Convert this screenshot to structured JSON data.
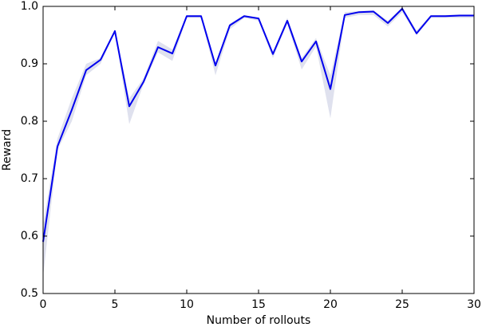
{
  "chart_data": {
    "type": "line",
    "xlabel": "Number of rollouts",
    "ylabel": "Reward",
    "x": [
      0,
      1,
      2,
      3,
      4,
      5,
      6,
      7,
      8,
      9,
      10,
      11,
      12,
      13,
      14,
      15,
      16,
      17,
      18,
      19,
      20,
      21,
      22,
      23,
      24,
      25,
      26,
      27,
      28,
      29,
      30
    ],
    "series": [
      {
        "color": "#0000ee",
        "values": [
          0.59,
          0.756,
          0.82,
          0.889,
          0.907,
          0.957,
          0.826,
          0.869,
          0.929,
          0.918,
          0.983,
          0.983,
          0.897,
          0.967,
          0.983,
          0.979,
          0.917,
          0.975,
          0.904,
          0.939,
          0.856,
          0.985,
          0.99,
          0.991,
          0.971,
          0.996,
          0.953,
          0.983,
          0.983,
          0.984,
          0.984
        ]
      }
    ],
    "band": {
      "color": "#dfe1ee",
      "lower": [
        0.53,
        0.75,
        0.8,
        0.88,
        0.9,
        0.955,
        0.795,
        0.865,
        0.92,
        0.905,
        0.98,
        0.98,
        0.88,
        0.96,
        0.98,
        0.975,
        0.91,
        0.97,
        0.89,
        0.93,
        0.805,
        0.98,
        0.985,
        0.985,
        0.965,
        0.99,
        0.95,
        0.98,
        0.98,
        0.98,
        0.98
      ],
      "upper": [
        0.62,
        0.77,
        0.84,
        0.9,
        0.91,
        0.96,
        0.84,
        0.875,
        0.94,
        0.925,
        0.985,
        0.985,
        0.9,
        0.97,
        0.985,
        0.98,
        0.92,
        0.98,
        0.91,
        0.945,
        0.88,
        0.99,
        0.992,
        0.993,
        0.975,
        0.998,
        0.958,
        0.985,
        0.985,
        0.986,
        0.986
      ]
    },
    "xlim": [
      0,
      30
    ],
    "xticks": [
      0,
      5,
      10,
      15,
      20,
      25,
      30
    ],
    "ylim": [
      0.5,
      1
    ],
    "yticks": [
      0.5,
      0.6,
      0.7,
      0.8,
      0.9,
      {
        "value": 1,
        "label": "1.0"
      }
    ],
    "grid": false
  }
}
